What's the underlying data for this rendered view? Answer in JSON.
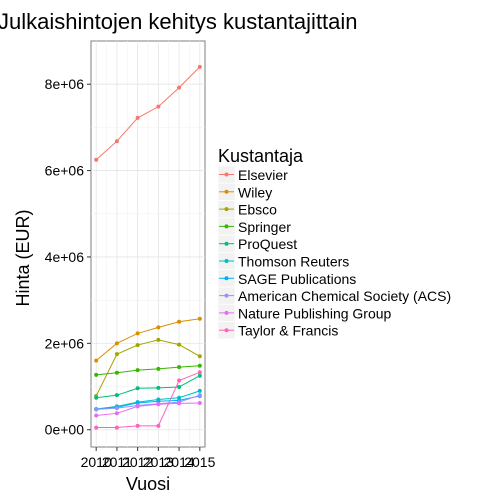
{
  "chart_data": {
    "type": "line",
    "title": "Julkaishintojen kehitys kustantajittain",
    "xlabel": "Vuosi",
    "ylabel": "Hinta (EUR)",
    "x": [
      2010,
      2011,
      2012,
      2013,
      2014,
      2015
    ],
    "x_tick_labels": [
      "2010",
      "2011",
      "2012",
      "2013",
      "2014",
      "2015"
    ],
    "xlim": [
      2009.75,
      2015.25
    ],
    "ylim": [
      -400000,
      9000000
    ],
    "y_ticks": [
      0,
      2000000,
      4000000,
      6000000,
      8000000
    ],
    "y_tick_labels": [
      "0e+00",
      "2e+06",
      "4e+06",
      "6e+06",
      "8e+06"
    ],
    "grid": true,
    "legend_title": "Kustantaja",
    "legend_position": "right",
    "series": [
      {
        "name": "Elsevier",
        "color": "#F8766D",
        "values": [
          6250000,
          6680000,
          7220000,
          7480000,
          7920000,
          8400000
        ]
      },
      {
        "name": "Wiley",
        "color": "#D89000",
        "values": [
          1600000,
          2000000,
          2230000,
          2370000,
          2500000,
          2570000
        ]
      },
      {
        "name": "Ebsco",
        "color": "#A3A500",
        "values": [
          780000,
          1750000,
          1960000,
          2080000,
          1970000,
          1700000
        ]
      },
      {
        "name": "Springer",
        "color": "#39B600",
        "values": [
          1270000,
          1320000,
          1380000,
          1410000,
          1450000,
          1480000
        ]
      },
      {
        "name": "ProQuest",
        "color": "#00BF7D",
        "values": [
          740000,
          800000,
          960000,
          970000,
          990000,
          1250000
        ]
      },
      {
        "name": "Thomson Reuters",
        "color": "#00BFC4",
        "values": [
          480000,
          540000,
          640000,
          700000,
          740000,
          900000
        ]
      },
      {
        "name": "SAGE Publications",
        "color": "#00B0F6",
        "values": [
          470000,
          520000,
          620000,
          660000,
          680000,
          780000
        ]
      },
      {
        "name": "American Chemical Society (ACS)",
        "color": "#9590FF",
        "values": [
          470000,
          500000,
          560000,
          600000,
          640000,
          800000
        ]
      },
      {
        "name": "Nature Publishing Group",
        "color": "#E76BF3",
        "values": [
          330000,
          380000,
          540000,
          590000,
          610000,
          620000
        ]
      },
      {
        "name": "Taylor & Francis",
        "color": "#FF62BC",
        "values": [
          50000,
          50000,
          90000,
          90000,
          1140000,
          1330000
        ]
      }
    ]
  }
}
